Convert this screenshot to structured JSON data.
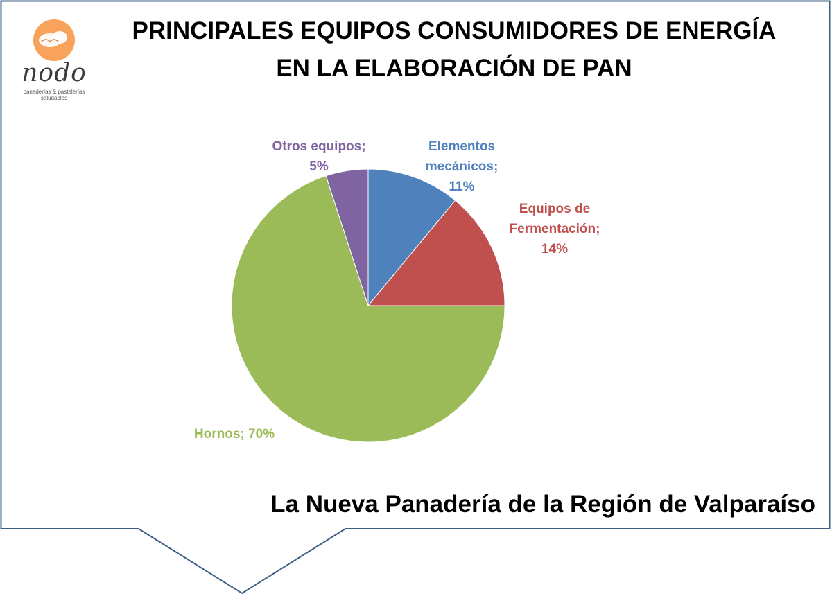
{
  "title_lines": [
    "PRINCIPALES EQUIPOS CONSUMIDORES DE ENERGÍA",
    "EN LA ELABORACIÓN DE PAN"
  ],
  "logo": {
    "wordmark": "nodo",
    "tagline_1": "panaderías & pastelerías",
    "tagline_2": "saludables",
    "circle_color": "#F9A25B"
  },
  "subtitle": "La Nueva Panadería de la Región de Valparaíso",
  "frame_color": "#3F5F86",
  "chart_data": {
    "type": "pie",
    "title": "PRINCIPALES EQUIPOS CONSUMIDORES DE ENERGÍA EN LA ELABORACIÓN DE PAN",
    "slices": [
      {
        "name": "Elementos mecánicos",
        "value": 11,
        "color": "#4F81BD",
        "label_lines": [
          "Elementos",
          "mecánicos;",
          "11%"
        ]
      },
      {
        "name": "Equipos de Fermentación",
        "value": 14,
        "color": "#C0504D",
        "label_lines": [
          "Equipos de",
          "Fermentación;",
          "14%"
        ]
      },
      {
        "name": "Hornos",
        "value": 70,
        "color": "#9BBB59",
        "label_lines": [
          "Hornos; 70%"
        ]
      },
      {
        "name": "Otros equipos",
        "value": 5,
        "color": "#8064A2",
        "label_lines": [
          "Otros equipos;",
          "5%"
        ]
      }
    ]
  }
}
